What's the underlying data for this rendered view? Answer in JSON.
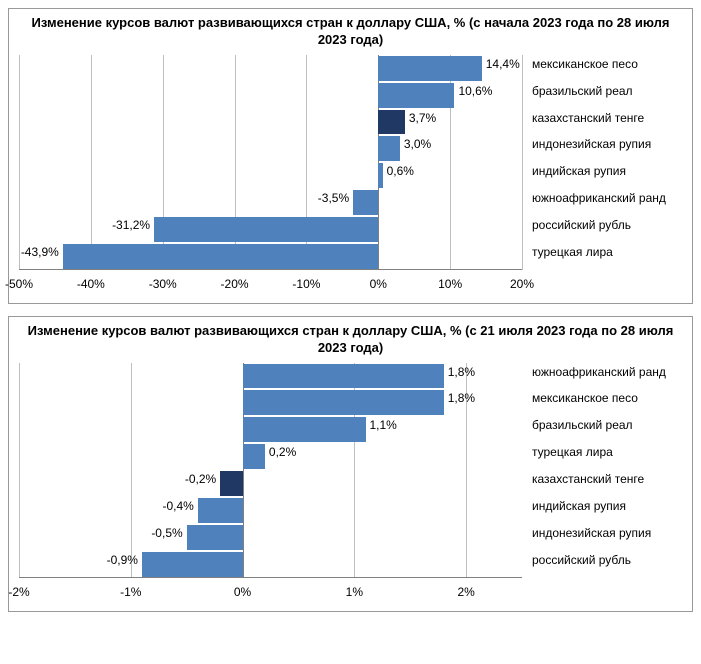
{
  "charts": [
    {
      "title": "Изменение курсов валют развивающихся стран к доллару США, % (с начала 2023 года по 28 июля 2023 года)",
      "title_fontsize": 13,
      "xmin": -50,
      "xmax": 20,
      "xtick_step": 10,
      "xtick_suffix": "%",
      "bar_default_color": "#4f81bd",
      "highlight_color": "#1f3864",
      "grid_color": "#bfbfbf",
      "axis_color": "#808080",
      "label_fontsize": 12,
      "value_fontsize": 12,
      "items": [
        {
          "label": "мексиканское песо",
          "value": 14.4,
          "display": "14,4%",
          "color": "#4f81bd"
        },
        {
          "label": "бразильский реал",
          "value": 10.6,
          "display": "10,6%",
          "color": "#4f81bd"
        },
        {
          "label": "казахстанский тенге",
          "value": 3.7,
          "display": "3,7%",
          "color": "#1f3864"
        },
        {
          "label": "индонезийская рупия",
          "value": 3.0,
          "display": "3,0%",
          "color": "#4f81bd"
        },
        {
          "label": "индийская рупия",
          "value": 0.6,
          "display": "0,6%",
          "color": "#4f81bd"
        },
        {
          "label": "южноафриканский ранд",
          "value": -3.5,
          "display": "-3,5%",
          "color": "#4f81bd"
        },
        {
          "label": "российский рубль",
          "value": -31.2,
          "display": "-31,2%",
          "color": "#4f81bd"
        },
        {
          "label": "турецкая лира",
          "value": -43.9,
          "display": "-43,9%",
          "color": "#4f81bd"
        }
      ],
      "xticks": [
        "-50%",
        "-40%",
        "-30%",
        "-20%",
        "-10%",
        "0%",
        "10%",
        "20%"
      ]
    },
    {
      "title": "Изменение курсов валют развивающихся стран к доллару США, % (с 21 июля 2023 года по 28 июля 2023 года)",
      "title_fontsize": 13,
      "xmin": -2,
      "xmax": 2.5,
      "xtick_step": 1,
      "xtick_suffix": "%",
      "bar_default_color": "#4f81bd",
      "highlight_color": "#1f3864",
      "grid_color": "#bfbfbf",
      "axis_color": "#808080",
      "label_fontsize": 12,
      "value_fontsize": 12,
      "items": [
        {
          "label": "южноафриканский ранд",
          "value": 1.8,
          "display": "1,8%",
          "color": "#4f81bd"
        },
        {
          "label": "мексиканское песо",
          "value": 1.8,
          "display": "1,8%",
          "color": "#4f81bd"
        },
        {
          "label": "бразильский реал",
          "value": 1.1,
          "display": "1,1%",
          "color": "#4f81bd"
        },
        {
          "label": "турецкая лира",
          "value": 0.2,
          "display": "0,2%",
          "color": "#4f81bd"
        },
        {
          "label": "казахстанский тенге",
          "value": -0.2,
          "display": "-0,2%",
          "color": "#1f3864"
        },
        {
          "label": "индийская рупия",
          "value": -0.4,
          "display": "-0,4%",
          "color": "#4f81bd"
        },
        {
          "label": "индонезийская рупия",
          "value": -0.5,
          "display": "-0,5%",
          "color": "#4f81bd"
        },
        {
          "label": "российский рубль",
          "value": -0.9,
          "display": "-0,9%",
          "color": "#4f81bd"
        }
      ],
      "xticks_values": [
        -2,
        -1,
        0,
        1,
        2
      ],
      "xticks": [
        "-2%",
        "-1%",
        "0%",
        "1%",
        "2%"
      ]
    }
  ]
}
